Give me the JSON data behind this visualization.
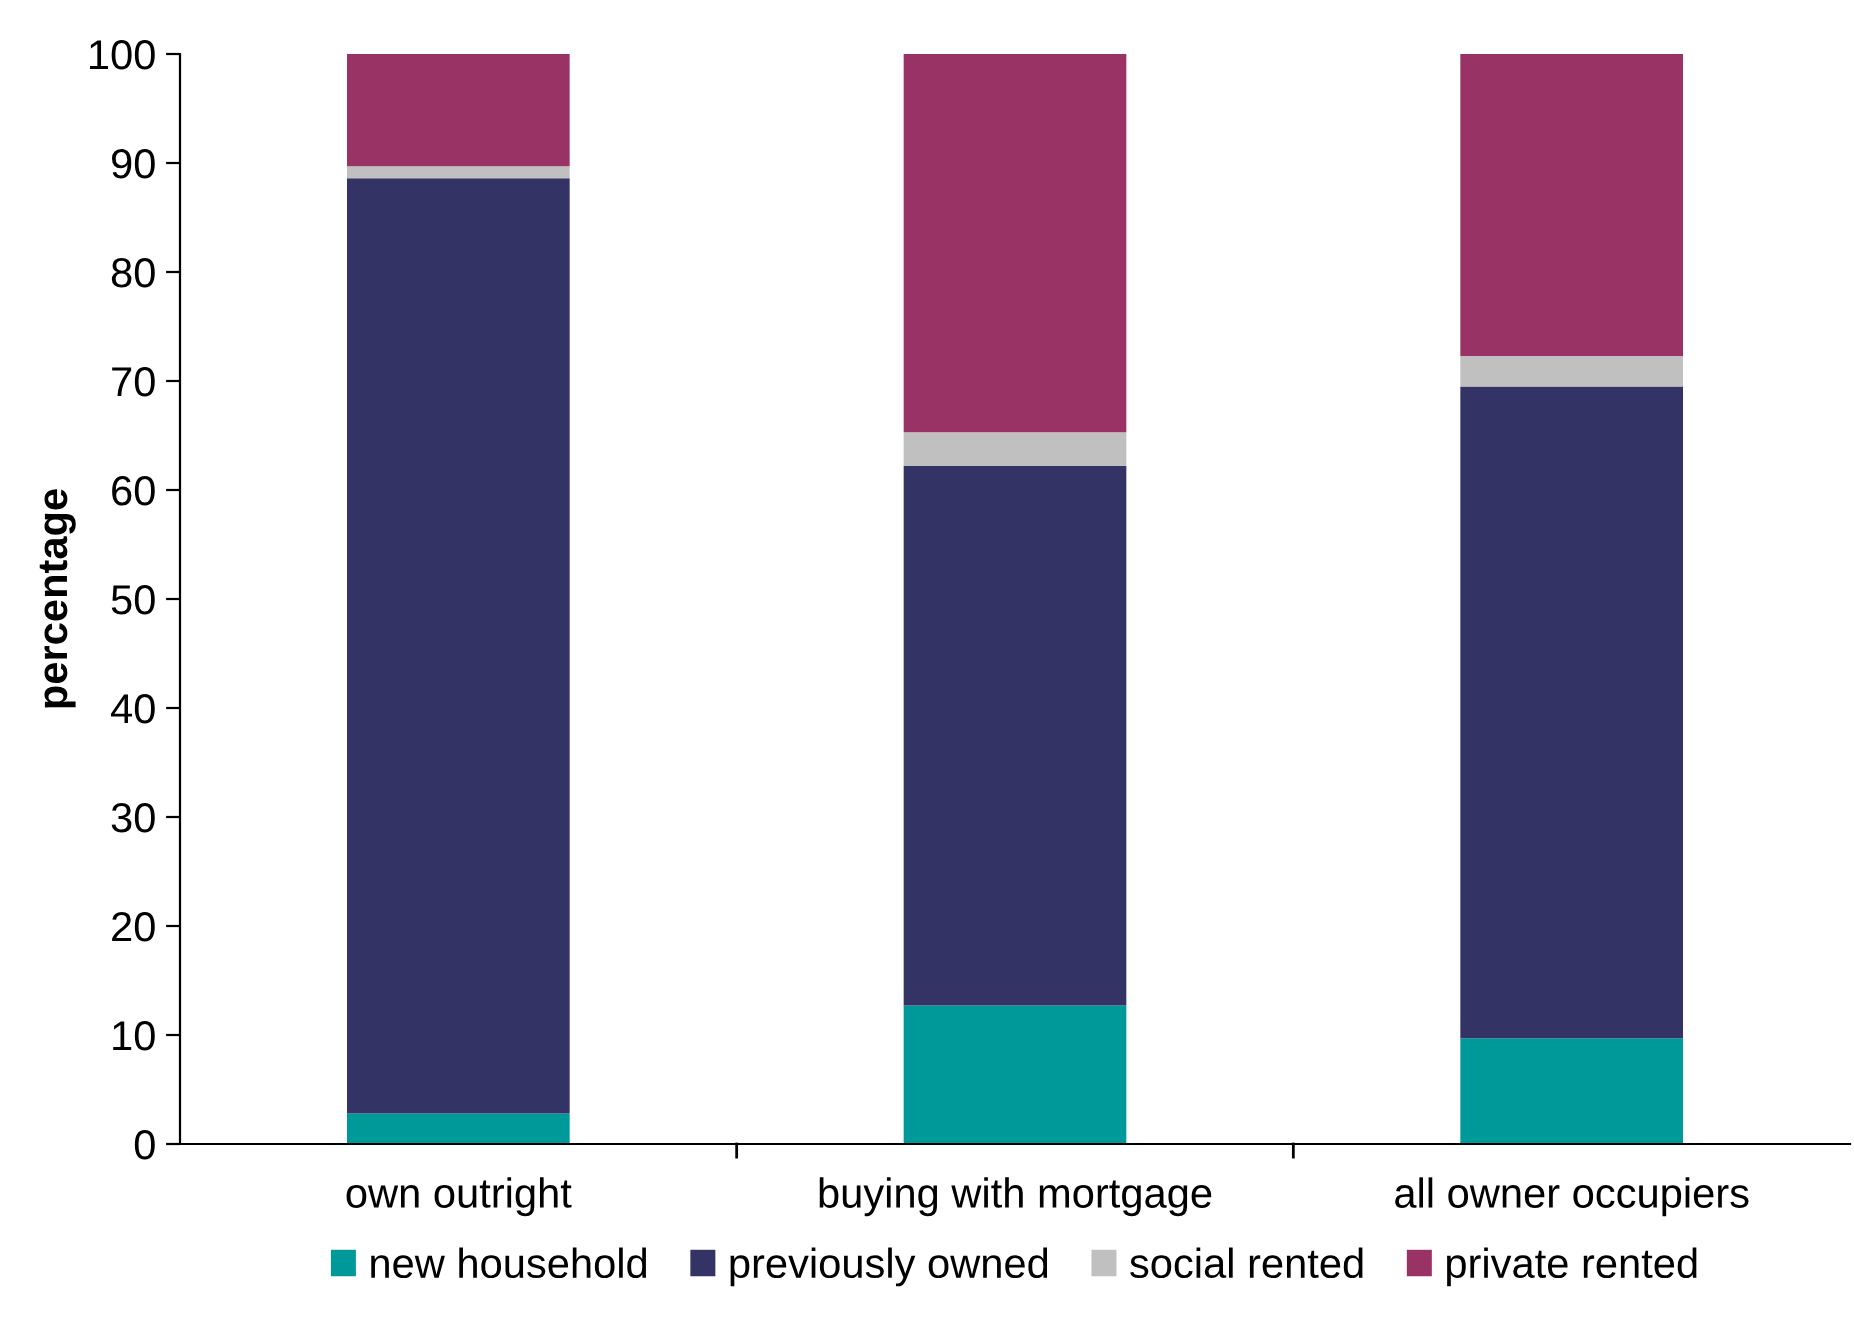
{
  "chart_data": {
    "type": "bar",
    "stacked": true,
    "ylabel": "percentage",
    "categories": [
      "own outright",
      "buying with mortgage",
      "all owner occupiers"
    ],
    "series": [
      {
        "name": "new household",
        "color": "#009999",
        "values": [
          2.8,
          12.7,
          9.7
        ]
      },
      {
        "name": "previously owned",
        "color": "#333366",
        "values": [
          85.8,
          49.5,
          59.8
        ]
      },
      {
        "name": "social rented",
        "color": "#c0c0c0",
        "values": [
          1.1,
          3.1,
          2.8
        ]
      },
      {
        "name": "private rented",
        "color": "#993366",
        "values": [
          10.3,
          34.7,
          27.7
        ]
      }
    ],
    "ylim": [
      0,
      100
    ],
    "yticks": [
      0,
      10,
      20,
      30,
      40,
      50,
      60,
      70,
      80,
      90,
      100
    ],
    "grid": false,
    "legend": "bottom"
  }
}
